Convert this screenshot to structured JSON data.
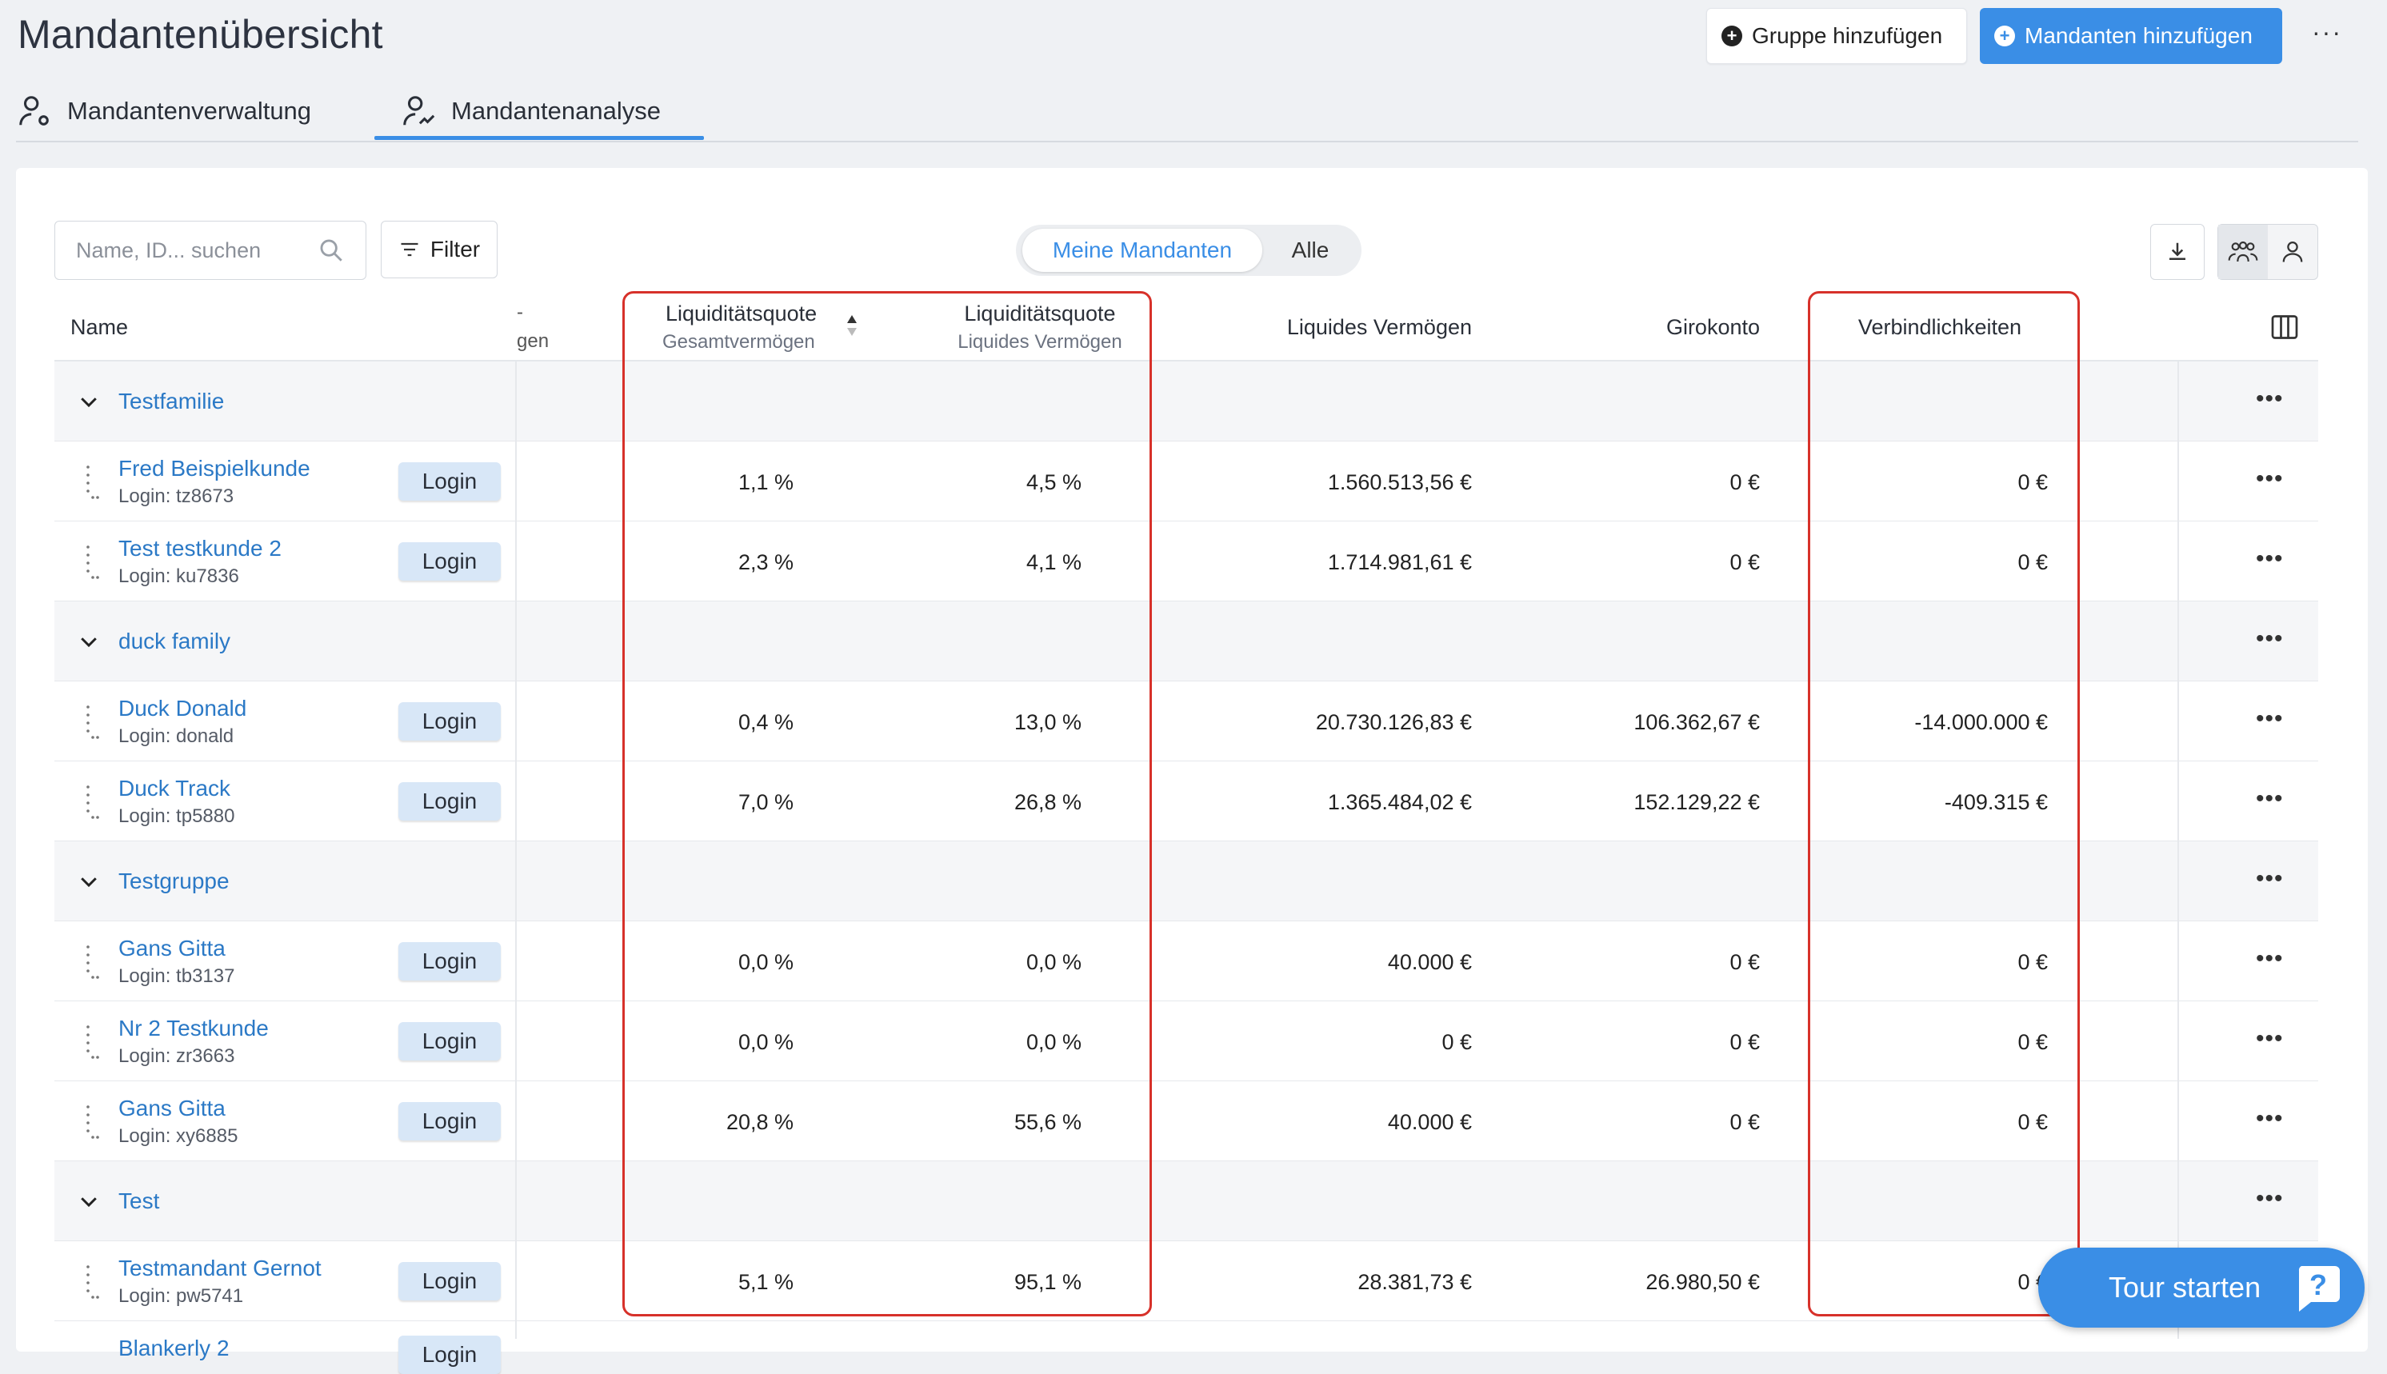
{
  "header": {
    "title": "Mandantenübersicht",
    "add_group": "Gruppe hinzufügen",
    "add_client": "Mandanten hinzufügen",
    "more": "···"
  },
  "tabs": [
    {
      "label": "Mandantenverwaltung",
      "icon": "user-gear-icon"
    },
    {
      "label": "Mandantenanalyse",
      "icon": "user-chart-icon",
      "active": true
    }
  ],
  "toolbar": {
    "search_placeholder": "Name, ID... suchen",
    "filter": "Filter",
    "segments": [
      "Meine Mandanten",
      "Alle"
    ]
  },
  "columns": {
    "name": "Name",
    "cut_top": "-",
    "cut_bottom": "gen",
    "lq_total": "Liquiditätsquote",
    "lq_total_sub": "Gesamtvermögen",
    "lq_liquid": "Liquiditätsquote",
    "lq_liquid_sub": "Liquides Vermögen",
    "liquid_assets": "Liquides Vermögen",
    "giro": "Girokonto",
    "liabilities": "Verbindlichkeiten"
  },
  "login_label": "Login",
  "groups": [
    {
      "name": "Testfamilie",
      "clients": [
        {
          "name": "Fred Beispielkunde",
          "login": "Login: tz8673",
          "lq1": "1,1 %",
          "lq2": "4,5 %",
          "assets": "1.560.513,56 €",
          "giro": "0 €",
          "liab": "0 €"
        },
        {
          "name": "Test testkunde 2",
          "login": "Login: ku7836",
          "lq1": "2,3 %",
          "lq2": "4,1 %",
          "assets": "1.714.981,61 €",
          "giro": "0 €",
          "liab": "0 €"
        }
      ]
    },
    {
      "name": "duck family",
      "clients": [
        {
          "name": "Duck Donald",
          "login": "Login: donald",
          "lq1": "0,4 %",
          "lq2": "13,0 %",
          "assets": "20.730.126,83 €",
          "giro": "106.362,67 €",
          "liab": "-14.000.000 €"
        },
        {
          "name": "Duck Track",
          "login": "Login: tp5880",
          "lq1": "7,0 %",
          "lq2": "26,8 %",
          "assets": "1.365.484,02 €",
          "giro": "152.129,22 €",
          "liab": "-409.315 €"
        }
      ]
    },
    {
      "name": "Testgruppe",
      "clients": [
        {
          "name": "Gans Gitta",
          "login": "Login: tb3137",
          "lq1": "0,0 %",
          "lq2": "0,0 %",
          "assets": "40.000 €",
          "giro": "0 €",
          "liab": "0 €"
        },
        {
          "name": "Nr 2 Testkunde",
          "login": "Login: zr3663",
          "lq1": "0,0 %",
          "lq2": "0,0 %",
          "assets": "0 €",
          "giro": "0 €",
          "liab": "0 €"
        },
        {
          "name": "Gans Gitta",
          "login": "Login: xy6885",
          "lq1": "20,8 %",
          "lq2": "55,6 %",
          "assets": "40.000 €",
          "giro": "0 €",
          "liab": "0 €"
        }
      ]
    },
    {
      "name": "Test",
      "clients": [
        {
          "name": "Testmandant Gernot",
          "login": "Login: pw5741",
          "lq1": "5,1 %",
          "lq2": "95,1 %",
          "assets": "28.381,73 €",
          "giro": "26.980,50 €",
          "liab": "0 €"
        }
      ]
    }
  ],
  "partial_row": {
    "name": "Blankerly 2"
  },
  "tour": {
    "label": "Tour starten"
  },
  "colors": {
    "accent": "#3a8ee6",
    "link": "#2b79c6",
    "highlight": "#d7312a"
  }
}
